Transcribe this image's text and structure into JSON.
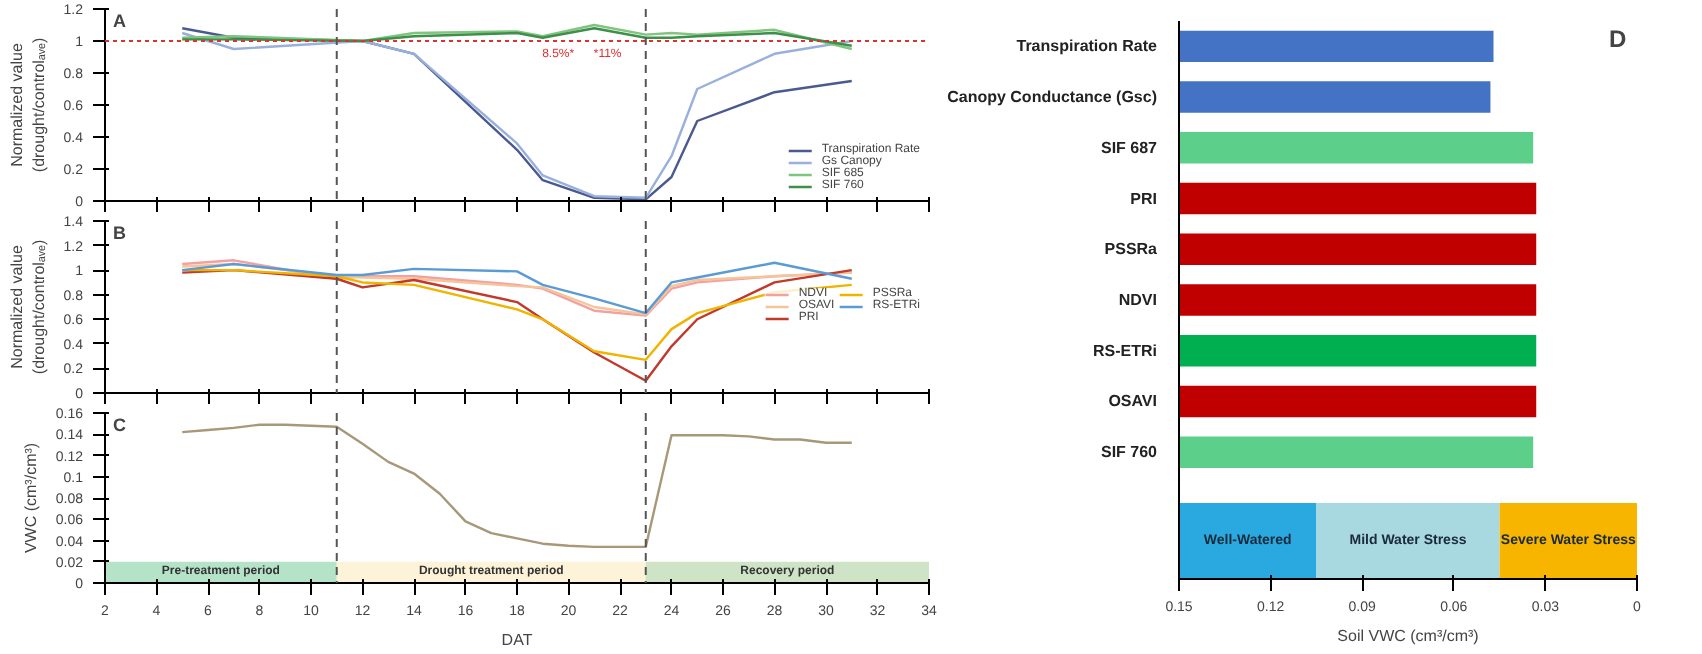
{
  "chart_data": [
    {
      "type": "line",
      "title": "A",
      "ylabel": "Normalized value\n(drought/controlₐᵥₑ)",
      "xlim": [
        2,
        34
      ],
      "xticks": [
        2,
        4,
        6,
        8,
        10,
        12,
        14,
        16,
        18,
        20,
        22,
        24,
        26,
        28,
        30,
        32,
        34
      ],
      "ylim": [
        0,
        1.2
      ],
      "yticks": [
        0,
        0.2,
        0.4,
        0.6,
        0.8,
        1,
        1.2
      ],
      "tick_labels": "y",
      "legend": "bottom right",
      "x": [
        5,
        7,
        12,
        14,
        18,
        19,
        21,
        23,
        24,
        25,
        28,
        31
      ],
      "series": [
        {
          "name": "Transpiration Rate",
          "color": "#4a5a90",
          "values": [
            1.08,
            1.02,
            1.0,
            0.92,
            0.32,
            0.13,
            0.02,
            0.01,
            0.15,
            0.5,
            0.68,
            0.75
          ]
        },
        {
          "name": "Gs Canopy",
          "color": "#9ab0dc",
          "values": [
            1.05,
            0.95,
            1.0,
            0.92,
            0.36,
            0.16,
            0.03,
            0.02,
            0.28,
            0.7,
            0.92,
            1.0
          ]
        },
        {
          "name": "SIF 685",
          "color": "#7fc47f",
          "values": [
            1.02,
            1.03,
            1.0,
            1.05,
            1.06,
            1.03,
            1.1,
            1.04,
            1.05,
            1.04,
            1.07,
            0.95
          ]
        },
        {
          "name": "SIF 760",
          "color": "#3d8f4a",
          "values": [
            1.01,
            1.01,
            1.0,
            1.03,
            1.05,
            1.02,
            1.08,
            1.02,
            1.02,
            1.03,
            1.05,
            0.97
          ]
        }
      ],
      "ref_lines": [
        {
          "axis": "y",
          "value": 1,
          "color": "#e03030",
          "line_style": "dotted"
        },
        {
          "axis": "x",
          "value": 11,
          "color": "#555555",
          "line_style": "dashed"
        },
        {
          "axis": "x",
          "value": 23,
          "color": "#555555",
          "line_style": "dashed"
        }
      ],
      "annotations": [
        "8.5%*",
        "*11%"
      ]
    },
    {
      "type": "line",
      "title": "B",
      "ylabel": "Normalized value\n(drought/controlₐᵥₑ)",
      "xlim": [
        2,
        34
      ],
      "xticks": [
        2,
        4,
        6,
        8,
        10,
        12,
        14,
        16,
        18,
        20,
        22,
        24,
        26,
        28,
        30,
        32,
        34
      ],
      "ylim": [
        0,
        1.4
      ],
      "yticks": [
        0,
        0.2,
        0.4,
        0.6,
        0.8,
        1,
        1.2,
        1.4
      ],
      "tick_labels": "y",
      "legend": "right",
      "x": [
        5,
        7,
        11,
        12,
        14,
        18,
        19,
        21,
        23,
        24,
        25,
        28,
        31
      ],
      "series": [
        {
          "name": "NDVI",
          "color": "#f2a0a0",
          "values": [
            1.05,
            1.08,
            0.93,
            0.95,
            0.95,
            0.88,
            0.85,
            0.67,
            0.63,
            0.85,
            0.9,
            0.95,
            0.98
          ]
        },
        {
          "name": "OSAVI",
          "color": "#f5c49a",
          "values": [
            1.03,
            1.05,
            0.95,
            0.94,
            0.93,
            0.87,
            0.86,
            0.7,
            0.64,
            0.87,
            0.92,
            0.95,
            0.98
          ]
        },
        {
          "name": "PRI",
          "color": "#c0392b",
          "values": [
            0.98,
            1.0,
            0.93,
            0.86,
            0.92,
            0.74,
            0.6,
            0.33,
            0.1,
            0.38,
            0.6,
            0.9,
            1.0
          ]
        },
        {
          "name": "PSSRa",
          "color": "#f0b400",
          "values": [
            1.0,
            1.0,
            0.95,
            0.9,
            0.88,
            0.68,
            0.6,
            0.34,
            0.27,
            0.52,
            0.65,
            0.82,
            0.88
          ]
        },
        {
          "name": "RS-ETRi",
          "color": "#5b9bd5",
          "values": [
            1.0,
            1.05,
            0.96,
            0.96,
            1.01,
            0.99,
            0.88,
            0.77,
            0.65,
            0.9,
            0.94,
            1.06,
            0.93
          ]
        }
      ],
      "ref_lines": [
        {
          "axis": "x",
          "value": 11,
          "color": "#555555",
          "line_style": "dashed"
        },
        {
          "axis": "x",
          "value": 23,
          "color": "#555555",
          "line_style": "dashed"
        }
      ]
    },
    {
      "type": "line",
      "title": "C",
      "ylabel": "VWC (cm³/cm³)",
      "xlabel": "DAT",
      "xlim": [
        2,
        34
      ],
      "xticks": [
        2,
        4,
        6,
        8,
        10,
        12,
        14,
        16,
        18,
        20,
        22,
        24,
        26,
        28,
        30,
        32,
        34
      ],
      "ylim": [
        0,
        0.16
      ],
      "yticks": [
        0,
        0.02,
        0.04,
        0.06,
        0.08,
        0.1,
        0.12,
        0.14,
        0.16
      ],
      "x": [
        5,
        6,
        7,
        8,
        9,
        10,
        11,
        12,
        13,
        14,
        15,
        16,
        17,
        18,
        19,
        20,
        21,
        22,
        23,
        24,
        25,
        26,
        27,
        28,
        29,
        30,
        31
      ],
      "series": [
        {
          "color": "#a89878",
          "values": [
            0.142,
            0.144,
            0.146,
            0.149,
            0.149,
            0.148,
            0.147,
            0.131,
            0.114,
            0.103,
            0.084,
            0.058,
            0.047,
            0.042,
            0.037,
            0.035,
            0.034,
            0.034,
            0.034,
            0.139,
            0.139,
            0.139,
            0.138,
            0.135,
            0.135,
            0.132,
            0.132
          ]
        }
      ],
      "ref_lines": [
        {
          "axis": "x",
          "value": 11,
          "color": "#555555",
          "line_style": "dashed"
        },
        {
          "axis": "x",
          "value": 23,
          "color": "#555555",
          "line_style": "dashed"
        }
      ],
      "bands": [
        {
          "axis": "x",
          "from": 2,
          "to": 11,
          "label": "Pre-treatment period",
          "color": "#b5e3c8"
        },
        {
          "axis": "x",
          "from": 11,
          "to": 23,
          "label": "Drought treatment period",
          "color": "#fdf3d8"
        },
        {
          "axis": "x",
          "from": 23,
          "to": 34,
          "label": "Recovery period",
          "color": "#cfe3c6"
        }
      ]
    },
    {
      "type": "bar",
      "orientation": "horizontal",
      "title": "D",
      "xlabel": "Soil VWC (cm³/cm³)",
      "xlim": [
        0.15,
        0
      ],
      "xticks": [
        0.15,
        0.12,
        0.09,
        0.06,
        0.03,
        0
      ],
      "categories": [
        "Transpiration Rate",
        "Canopy Conductance (Gsc)",
        "SIF 687",
        "PRI",
        "PSSRa",
        "NDVI",
        "RS-ETRi",
        "OSAVI",
        "SIF 760",
        null,
        null
      ],
      "base": [
        0.15,
        0.15,
        0.15,
        0.15,
        0.15,
        0.15,
        0.15,
        0.15,
        0.15,
        null,
        null
      ],
      "values": [
        -0.103,
        -0.102,
        -0.116,
        -0.117,
        -0.117,
        -0.117,
        -0.117,
        -0.117,
        -0.116,
        null,
        null
      ],
      "colors": [
        "#4472c4",
        "#4472c4",
        "#5ccf8a",
        "#c00000",
        "#c00000",
        "#c00000",
        "#00b050",
        "#c00000",
        "#5ccf8a",
        null,
        null
      ],
      "bands": [
        {
          "axis": "x",
          "from": 0.15,
          "to": 0.105,
          "label": "Well-Watered",
          "color": "#2aa9e0"
        },
        {
          "axis": "x",
          "from": 0.105,
          "to": 0.045,
          "label": "Mild Water Stress",
          "color": "#a8d8e0"
        },
        {
          "axis": "x",
          "from": 0.045,
          "to": 0,
          "label": "Severe Water Stress",
          "color": "#f7b500"
        }
      ]
    }
  ]
}
